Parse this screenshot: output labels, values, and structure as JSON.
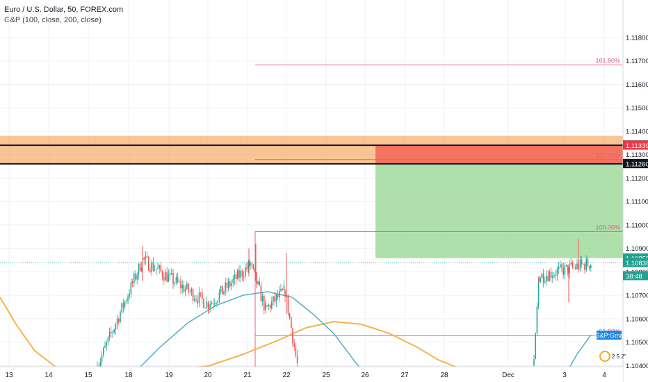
{
  "header": {
    "title": "Euro / U.S. Dollar, 50, FOREX.com",
    "indicator": "G&P (100, close, 200, close)"
  },
  "colors": {
    "up": "#26a69a",
    "down": "#ef5350",
    "zone": "#f7a65a",
    "stop": "#f36b5a",
    "target": "#9bd897",
    "fib": "#e0607e",
    "ma_fast": "#4fb0c6",
    "ma_slow": "#f6b24c",
    "price_line": "#26a69a",
    "level_dark": "#131722"
  },
  "chart_data": {
    "type": "candlestick",
    "symbol": "EURUSD",
    "timeframe": "50",
    "x_ticks": [
      "13",
      "14",
      "15",
      "18",
      "19",
      "20",
      "21",
      "22",
      "25",
      "26",
      "27",
      "28",
      "Dec",
      "3",
      "4"
    ],
    "ylim": [
      1.10395,
      1.1196
    ],
    "y_ticks": [
      "1.11800",
      "1.11700",
      "1.11600",
      "1.11500",
      "1.11400",
      "1.11300",
      "1.11200",
      "1.11100",
      "1.11000",
      "1.10900",
      "1.10800",
      "1.10700",
      "1.10600",
      "1.10500",
      "1.10400"
    ],
    "grid": true,
    "price_labels": [
      {
        "text": "1.11340",
        "value": 1.1134,
        "style": "dark"
      },
      {
        "text": "1.11339",
        "value": 1.11339,
        "style": "red"
      },
      {
        "text": "1.11261",
        "value": 1.11261,
        "style": "dark"
      },
      {
        "text": "1.11260",
        "value": 1.1126,
        "style": "dark"
      },
      {
        "text": "1.10858",
        "value": 1.10858,
        "style": "green"
      },
      {
        "text": "1.10838",
        "value": 1.10838,
        "style": "green"
      },
      {
        "text": "38:48",
        "value": 1.10782,
        "style": "green"
      }
    ],
    "horizontal_levels": [
      1.1134,
      1.11261
    ],
    "resistance_zone": {
      "from": 1.1126,
      "to": 1.1138
    },
    "position": {
      "entry": 1.10858,
      "stop": 1.11339,
      "target": 1.11261,
      "x_start": "26"
    },
    "fibonacci": [
      {
        "label": "161.80%",
        "value": 1.11683
      },
      {
        "label": "127.20%",
        "value": 1.11279
      },
      {
        "label": "100.00%",
        "value": 1.10972
      },
      {
        "label": "61.80%",
        "value": 1.10528
      }
    ],
    "fib_base": 1.10395,
    "current_price": 1.10838,
    "ma_label": "G&P:Gma",
    "corner_label": "2 5 2\""
  }
}
